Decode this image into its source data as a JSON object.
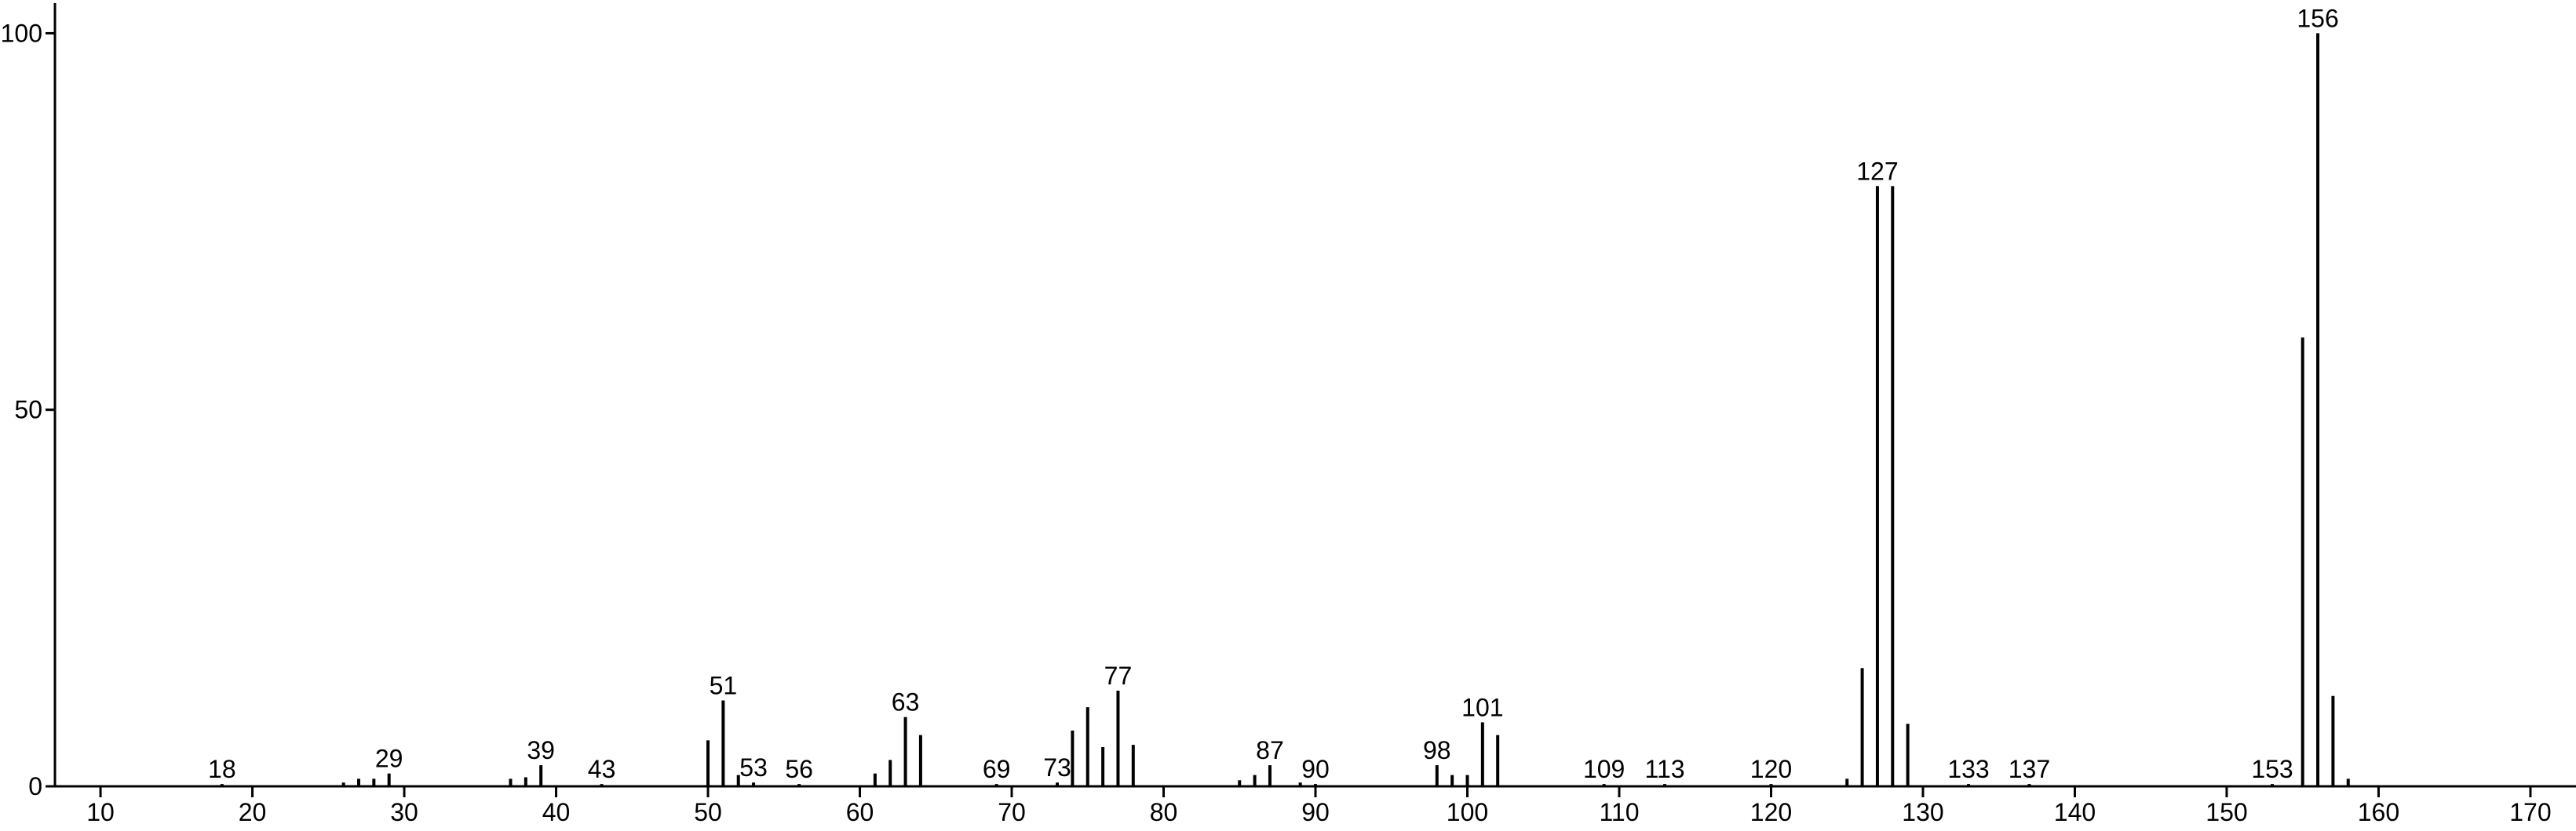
{
  "chart_data": {
    "type": "stick",
    "x": [
      18,
      26,
      27,
      28,
      29,
      37,
      38,
      39,
      43,
      50,
      51,
      52,
      53,
      56,
      61,
      62,
      63,
      64,
      69,
      73,
      74,
      75,
      76,
      77,
      78,
      85,
      86,
      87,
      89,
      90,
      98,
      99,
      100,
      101,
      102,
      109,
      113,
      120,
      125,
      126,
      127,
      128,
      129,
      133,
      137,
      153,
      155,
      156,
      157,
      158
    ],
    "values": [
      0.3,
      0.5,
      1,
      1,
      1.7,
      1,
      1.2,
      2.8,
      0.3,
      6.1,
      11.4,
      1.5,
      0.5,
      0.3,
      1.7,
      3.5,
      9.2,
      6.8,
      0.3,
      0.5,
      7.4,
      10.5,
      5.2,
      12.7,
      5.5,
      0.8,
      1.5,
      2.8,
      0.5,
      0.3,
      2.8,
      1.5,
      1.5,
      8.5,
      6.8,
      0.3,
      0.3,
      0.3,
      1,
      15.7,
      79.7,
      79.7,
      8.3,
      0.3,
      0.3,
      0.3,
      59.6,
      100,
      12,
      1
    ],
    "peak_labels": [
      "18",
      null,
      null,
      null,
      "29",
      null,
      null,
      "39",
      "43",
      null,
      "51",
      null,
      "53",
      "56",
      null,
      null,
      "63",
      null,
      "69",
      "73",
      null,
      null,
      null,
      "77",
      null,
      null,
      null,
      "87",
      null,
      "90",
      "98",
      null,
      null,
      "101",
      null,
      "109",
      "113",
      "120",
      null,
      null,
      "127",
      null,
      null,
      "133",
      "137",
      "153",
      null,
      "156",
      null,
      null
    ],
    "color": "#000000",
    "xlim": [
      7,
      173
    ],
    "xticks": [
      10,
      20,
      30,
      40,
      50,
      60,
      70,
      80,
      90,
      100,
      110,
      120,
      130,
      140,
      150,
      160,
      170
    ],
    "ylim": [
      0,
      104
    ],
    "yticks": [
      0,
      50,
      100
    ]
  }
}
